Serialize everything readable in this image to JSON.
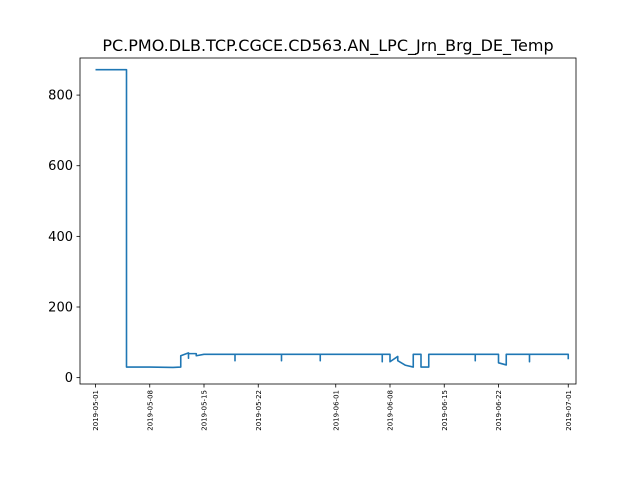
{
  "chart_data": {
    "type": "line",
    "title": "PC.PMO.DLB.TCP.CGCE.CD563.AN_LPC_Jrn_Brg_DE_Temp",
    "xlabel": "",
    "ylabel": "",
    "x_type": "date",
    "xlim": [
      "2019-04-29",
      "2019-07-02"
    ],
    "ylim": [
      -18,
      905
    ],
    "x_ticks": [
      "2019-05-01",
      "2019-05-08",
      "2019-05-15",
      "2019-05-22",
      "2019-06-01",
      "2019-06-08",
      "2019-06-15",
      "2019-06-22",
      "2019-07-01"
    ],
    "y_ticks": [
      0,
      200,
      400,
      600,
      800
    ],
    "grid": false,
    "legend": "none",
    "series": [
      {
        "color": "#1f77b4",
        "points": [
          [
            "2019-05-01",
            872
          ],
          [
            "2019-05-05",
            872
          ],
          [
            "2019-05-05",
            30
          ],
          [
            "2019-05-08",
            30
          ],
          [
            "2019-05-11",
            29
          ],
          [
            "2019-05-12",
            30
          ],
          [
            "2019-05-12",
            62
          ],
          [
            "2019-05-13",
            70
          ],
          [
            "2019-05-13",
            55
          ],
          [
            "2019-05-13",
            68
          ],
          [
            "2019-05-14",
            68
          ],
          [
            "2019-05-14",
            62
          ],
          [
            "2019-05-15",
            66
          ],
          [
            "2019-05-19",
            66
          ],
          [
            "2019-05-19",
            48
          ],
          [
            "2019-05-19",
            66
          ],
          [
            "2019-05-25",
            66
          ],
          [
            "2019-05-25",
            48
          ],
          [
            "2019-05-25",
            66
          ],
          [
            "2019-05-30",
            66
          ],
          [
            "2019-05-30",
            48
          ],
          [
            "2019-05-30",
            66
          ],
          [
            "2019-06-07",
            66
          ],
          [
            "2019-06-07",
            45
          ],
          [
            "2019-06-07",
            66
          ],
          [
            "2019-06-08",
            66
          ],
          [
            "2019-06-08",
            45
          ],
          [
            "2019-06-09",
            60
          ],
          [
            "2019-06-09",
            48
          ],
          [
            "2019-06-10",
            35
          ],
          [
            "2019-06-11",
            30
          ],
          [
            "2019-06-11",
            66
          ],
          [
            "2019-06-12",
            66
          ],
          [
            "2019-06-12",
            30
          ],
          [
            "2019-06-13",
            30
          ],
          [
            "2019-06-13",
            66
          ],
          [
            "2019-06-19",
            66
          ],
          [
            "2019-06-19",
            48
          ],
          [
            "2019-06-19",
            66
          ],
          [
            "2019-06-22",
            66
          ],
          [
            "2019-06-22",
            42
          ],
          [
            "2019-06-23",
            36
          ],
          [
            "2019-06-23",
            66
          ],
          [
            "2019-06-26",
            66
          ],
          [
            "2019-06-26",
            45
          ],
          [
            "2019-06-26",
            66
          ],
          [
            "2019-07-01",
            66
          ],
          [
            "2019-07-01",
            52
          ]
        ]
      }
    ]
  }
}
